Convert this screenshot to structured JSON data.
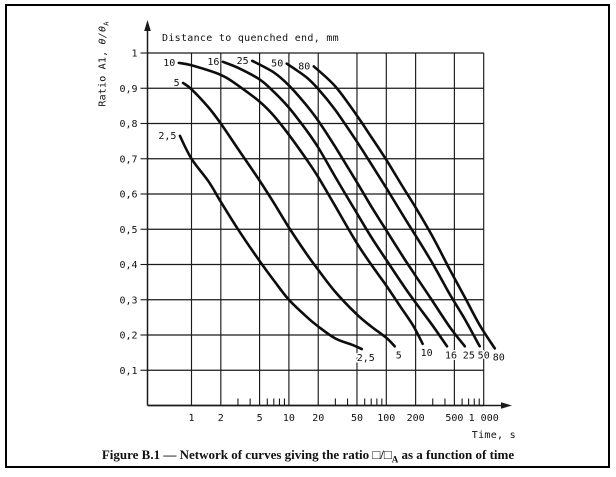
{
  "figure": {
    "plot_title": "Distance to quenched end, mm",
    "x_axis": {
      "label": "Time, s"
    },
    "y_axis": {
      "label_prefix": "Ratio A1, ",
      "label_theta": "θ/θ",
      "label_sub": "A"
    },
    "caption": {
      "part1": "Figure B.1 — Network of curves giving the ratio □/□",
      "sub": "A",
      "part2": " as a function of time"
    }
  },
  "chart_data": {
    "type": "line",
    "title": "Distance to quenched end, mm",
    "xlabel": "Time, s",
    "ylabel": "Ratio A1, θ/θA",
    "x_scale": "log",
    "xlim": [
      0.35,
      1000
    ],
    "ylim": [
      0,
      1.0
    ],
    "grid": true,
    "x_ticks": [
      1,
      2,
      5,
      10,
      20,
      50,
      100,
      200,
      500,
      1000
    ],
    "x_tick_labels": [
      "1",
      "2",
      "5",
      "10",
      "20",
      "50",
      "100",
      "200",
      "500",
      "1 000"
    ],
    "x_minor_ticks": [
      3,
      4,
      6,
      7,
      8,
      9,
      30,
      40,
      60,
      70,
      80,
      90,
      300,
      400,
      600,
      700,
      800,
      900
    ],
    "y_ticks": [
      1.0,
      0.9,
      0.8,
      0.7,
      0.6,
      0.5,
      0.4,
      0.3,
      0.2,
      0.1
    ],
    "y_tick_labels": [
      "1",
      "0,9",
      "0,8",
      "0,7",
      "0,6",
      "0,5",
      "0,4",
      "0,3",
      "0,2",
      "0,1"
    ],
    "series": [
      {
        "name": "2,5",
        "distance_mm": 2.5,
        "points": [
          [
            0.76,
            0.765
          ],
          [
            1,
            0.7
          ],
          [
            1.5,
            0.635
          ],
          [
            2,
            0.578
          ],
          [
            3,
            0.5
          ],
          [
            5,
            0.41
          ],
          [
            7,
            0.355
          ],
          [
            10,
            0.3
          ],
          [
            15,
            0.253
          ],
          [
            20,
            0.224
          ],
          [
            30,
            0.19
          ],
          [
            45,
            0.172
          ],
          [
            56,
            0.16
          ]
        ]
      },
      {
        "name": "5",
        "distance_mm": 5,
        "points": [
          [
            0.82,
            0.915
          ],
          [
            1,
            0.897
          ],
          [
            1.5,
            0.845
          ],
          [
            2,
            0.8
          ],
          [
            3,
            0.728
          ],
          [
            5,
            0.638
          ],
          [
            7,
            0.575
          ],
          [
            10,
            0.505
          ],
          [
            15,
            0.432
          ],
          [
            20,
            0.385
          ],
          [
            30,
            0.322
          ],
          [
            50,
            0.258
          ],
          [
            70,
            0.224
          ],
          [
            100,
            0.192
          ],
          [
            122,
            0.168
          ]
        ]
      },
      {
        "name": "10",
        "distance_mm": 10,
        "points": [
          [
            0.74,
            0.972
          ],
          [
            1,
            0.965
          ],
          [
            2,
            0.938
          ],
          [
            3,
            0.908
          ],
          [
            5,
            0.862
          ],
          [
            7,
            0.822
          ],
          [
            10,
            0.768
          ],
          [
            15,
            0.7
          ],
          [
            20,
            0.648
          ],
          [
            30,
            0.565
          ],
          [
            50,
            0.46
          ],
          [
            70,
            0.4
          ],
          [
            100,
            0.34
          ],
          [
            140,
            0.28
          ],
          [
            190,
            0.225
          ],
          [
            236,
            0.175
          ]
        ]
      },
      {
        "name": "16",
        "distance_mm": 16,
        "points": [
          [
            2.1,
            0.975
          ],
          [
            3,
            0.958
          ],
          [
            5,
            0.925
          ],
          [
            7,
            0.89
          ],
          [
            10,
            0.845
          ],
          [
            15,
            0.782
          ],
          [
            20,
            0.732
          ],
          [
            30,
            0.648
          ],
          [
            50,
            0.545
          ],
          [
            70,
            0.478
          ],
          [
            100,
            0.413
          ],
          [
            150,
            0.34
          ],
          [
            200,
            0.292
          ],
          [
            300,
            0.226
          ],
          [
            420,
            0.168
          ]
        ]
      },
      {
        "name": "25",
        "distance_mm": 25,
        "points": [
          [
            4.2,
            0.978
          ],
          [
            7,
            0.945
          ],
          [
            10,
            0.908
          ],
          [
            15,
            0.853
          ],
          [
            20,
            0.808
          ],
          [
            30,
            0.733
          ],
          [
            50,
            0.633
          ],
          [
            70,
            0.565
          ],
          [
            100,
            0.497
          ],
          [
            150,
            0.42
          ],
          [
            200,
            0.368
          ],
          [
            300,
            0.295
          ],
          [
            450,
            0.222
          ],
          [
            640,
            0.168
          ]
        ]
      },
      {
        "name": "50",
        "distance_mm": 50,
        "points": [
          [
            9.5,
            0.97
          ],
          [
            15,
            0.932
          ],
          [
            20,
            0.898
          ],
          [
            30,
            0.838
          ],
          [
            50,
            0.748
          ],
          [
            70,
            0.685
          ],
          [
            100,
            0.617
          ],
          [
            150,
            0.537
          ],
          [
            200,
            0.482
          ],
          [
            300,
            0.402
          ],
          [
            450,
            0.315
          ],
          [
            640,
            0.245
          ],
          [
            910,
            0.168
          ]
        ]
      },
      {
        "name": "80",
        "distance_mm": 80,
        "points": [
          [
            18,
            0.962
          ],
          [
            30,
            0.905
          ],
          [
            50,
            0.822
          ],
          [
            70,
            0.762
          ],
          [
            100,
            0.697
          ],
          [
            150,
            0.617
          ],
          [
            200,
            0.562
          ],
          [
            300,
            0.478
          ],
          [
            450,
            0.385
          ],
          [
            640,
            0.307
          ],
          [
            910,
            0.228
          ],
          [
            1300,
            0.162
          ]
        ]
      }
    ]
  }
}
